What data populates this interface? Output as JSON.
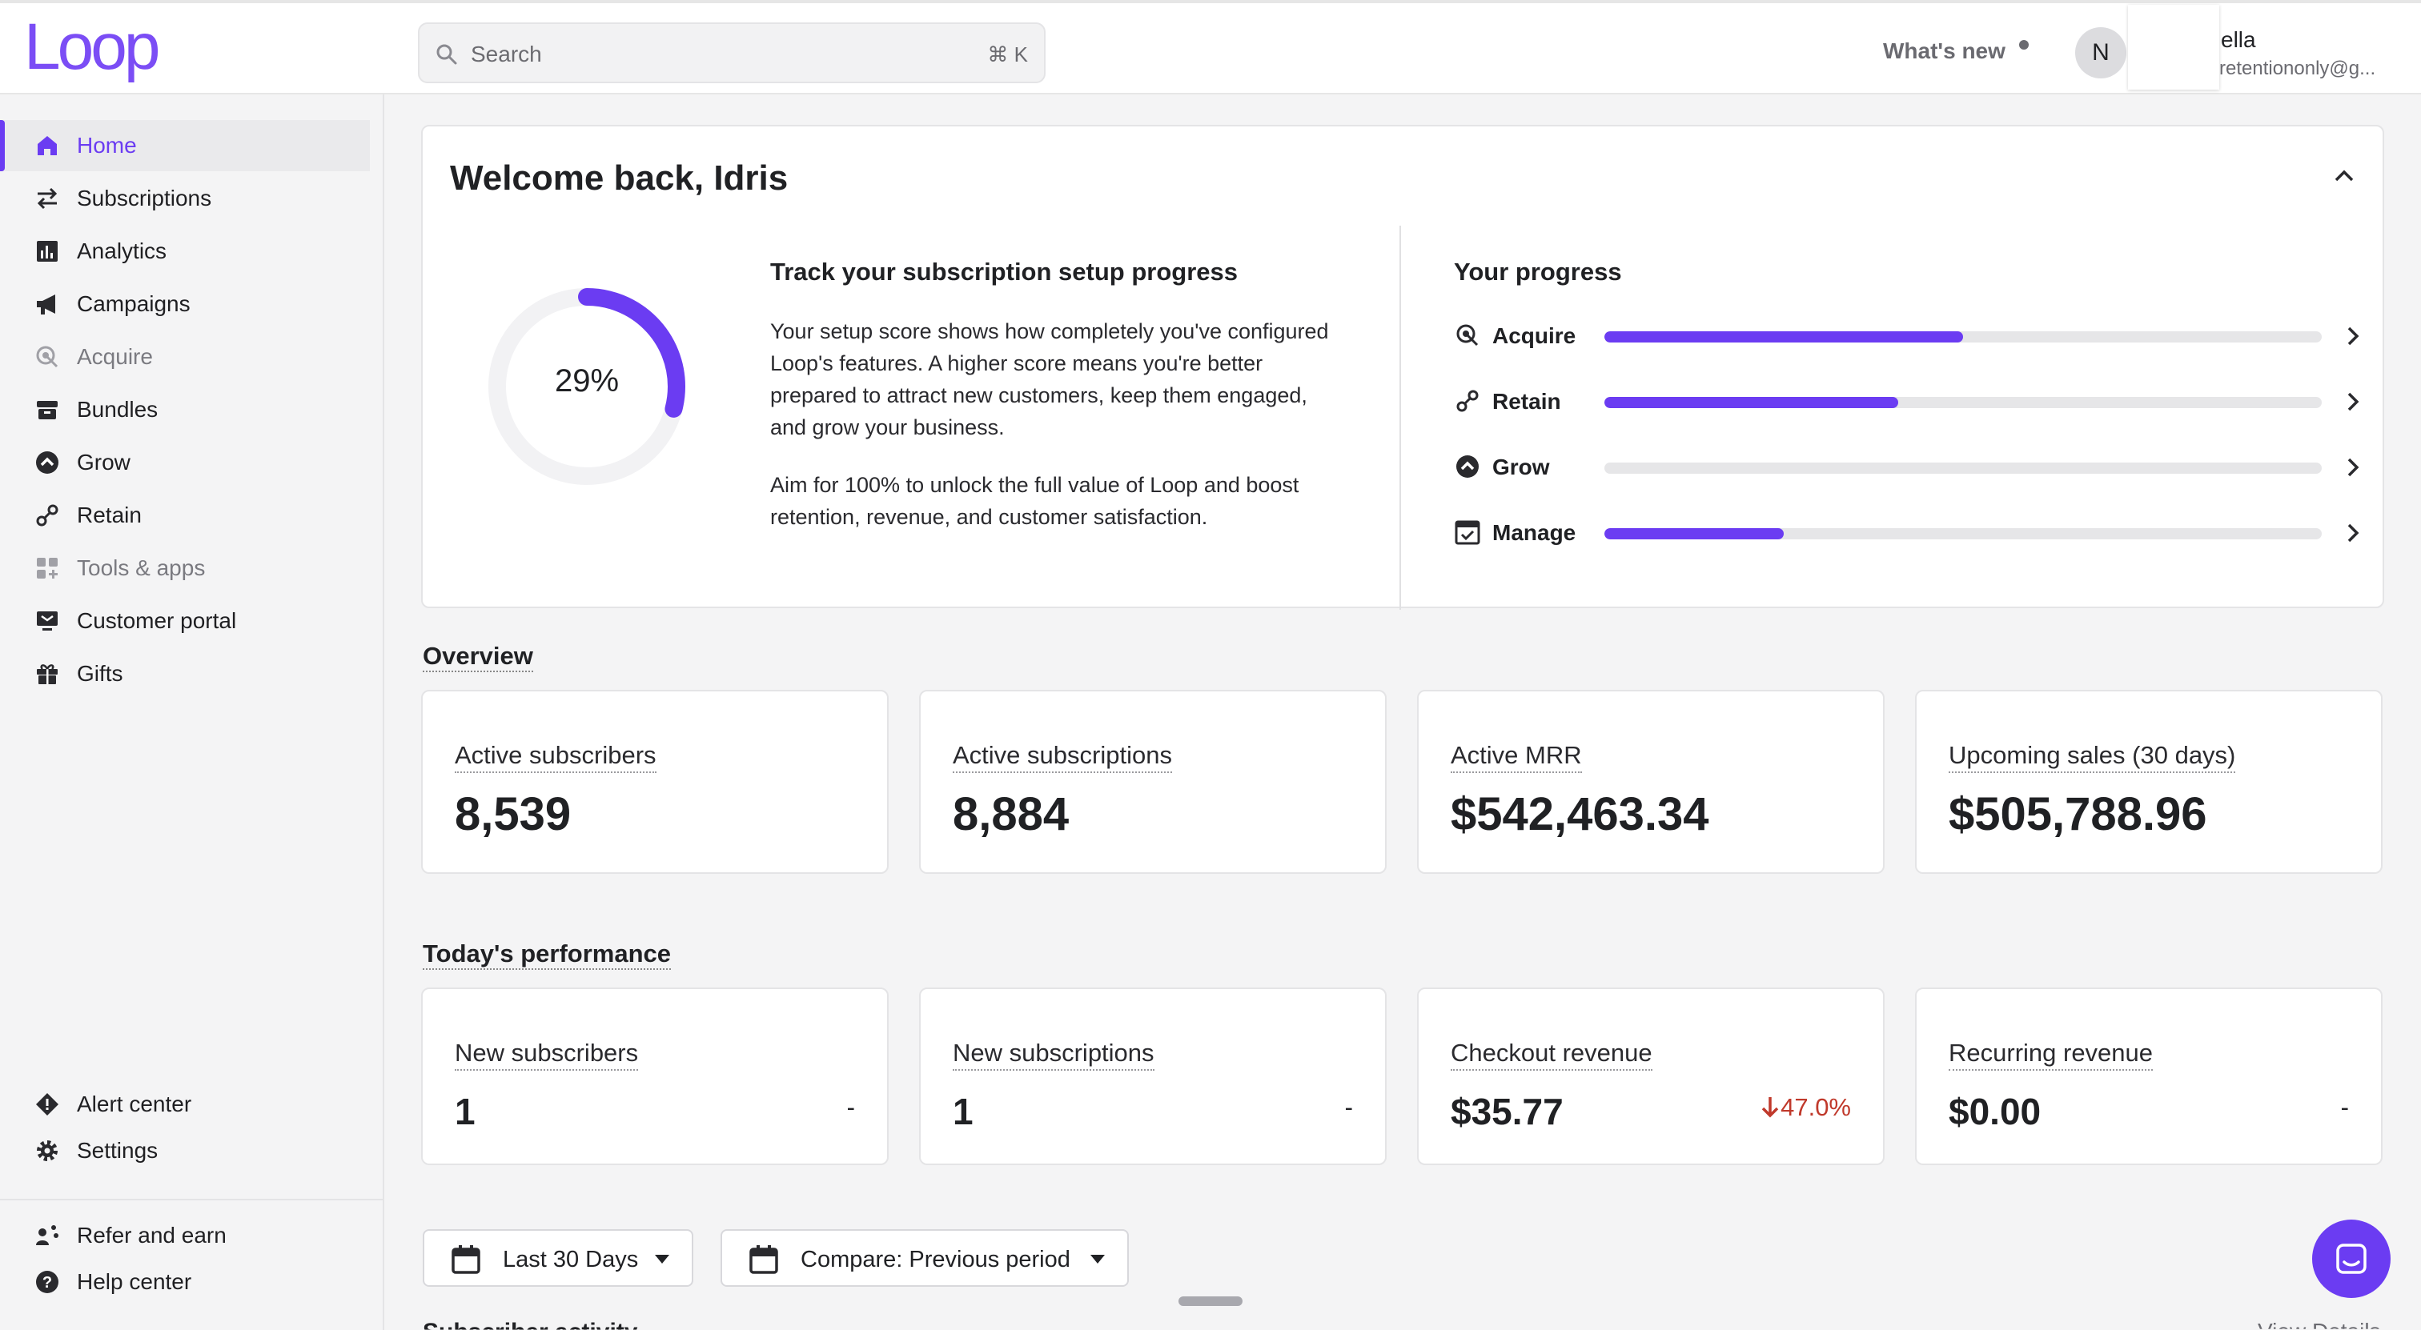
{
  "header": {
    "logo_text": "Loop",
    "search_placeholder": "Search",
    "search_shortcut": "⌘ K",
    "whats_new": "What's new",
    "avatar_initial": "N",
    "user_name": "ella",
    "user_email": "retentiononly@g..."
  },
  "sidebar": {
    "items": [
      {
        "label": "Home",
        "icon": "home-icon"
      },
      {
        "label": "Subscriptions",
        "icon": "swap-arrows-icon"
      },
      {
        "label": "Analytics",
        "icon": "bar-chart-icon"
      },
      {
        "label": "Campaigns",
        "icon": "megaphone-icon"
      },
      {
        "label": "Acquire",
        "icon": "acquire-icon"
      },
      {
        "label": "Bundles",
        "icon": "box-icon"
      },
      {
        "label": "Grow",
        "icon": "grow-icon"
      },
      {
        "label": "Retain",
        "icon": "retain-icon"
      },
      {
        "label": "Tools & apps",
        "icon": "apps-grid-icon"
      },
      {
        "label": "Customer portal",
        "icon": "portal-icon"
      },
      {
        "label": "Gifts",
        "icon": "gift-icon"
      }
    ],
    "bottom": [
      {
        "label": "Alert center",
        "icon": "alert-diamond-icon"
      },
      {
        "label": "Settings",
        "icon": "gear-icon"
      },
      {
        "label": "Refer and earn",
        "icon": "refer-icon"
      },
      {
        "label": "Help center",
        "icon": "help-icon"
      }
    ]
  },
  "welcome": {
    "title": "Welcome back, Idris",
    "setup_percent": 29,
    "setup_label": "29%",
    "track_title": "Track your subscription setup progress",
    "para1": "Your setup score shows how completely you've configured Loop's features. A higher score means you're better prepared to attract new customers, keep them engaged, and grow your business.",
    "para2": "Aim for 100% to unlock the full value of Loop and boost retention, revenue, and customer satisfaction.",
    "progress_title": "Your progress",
    "progress": [
      {
        "label": "Acquire",
        "fraction": 0.5,
        "icon": "acquire-icon"
      },
      {
        "label": "Retain",
        "fraction": 0.41,
        "icon": "retain-icon"
      },
      {
        "label": "Grow",
        "fraction": 0.0,
        "icon": "grow-icon"
      },
      {
        "label": "Manage",
        "fraction": 0.25,
        "icon": "manage-icon"
      }
    ]
  },
  "overview": {
    "title": "Overview",
    "stats": [
      {
        "label": "Active subscribers",
        "value": "8,539"
      },
      {
        "label": "Active subscriptions",
        "value": "8,884"
      },
      {
        "label": "Active MRR",
        "value": "$542,463.34"
      },
      {
        "label": "Upcoming sales (30 days)",
        "value": "$505,788.96"
      }
    ]
  },
  "performance": {
    "title": "Today's performance",
    "stats": [
      {
        "label": "New subscribers",
        "value": "1",
        "change": "-"
      },
      {
        "label": "New subscriptions",
        "value": "1",
        "change": "-"
      },
      {
        "label": "Checkout revenue",
        "value": "$35.77",
        "change": "47.0%",
        "direction": "down"
      },
      {
        "label": "Recurring revenue",
        "value": "$0.00",
        "change": "-"
      }
    ]
  },
  "filters": {
    "date_range": "Last 30 Days",
    "compare": "Compare: Previous period"
  },
  "peek": {
    "section": "Subscriber activity",
    "link": "View Details"
  },
  "colors": {
    "accent": "#6b3cf2",
    "negative": "#c0392b"
  }
}
